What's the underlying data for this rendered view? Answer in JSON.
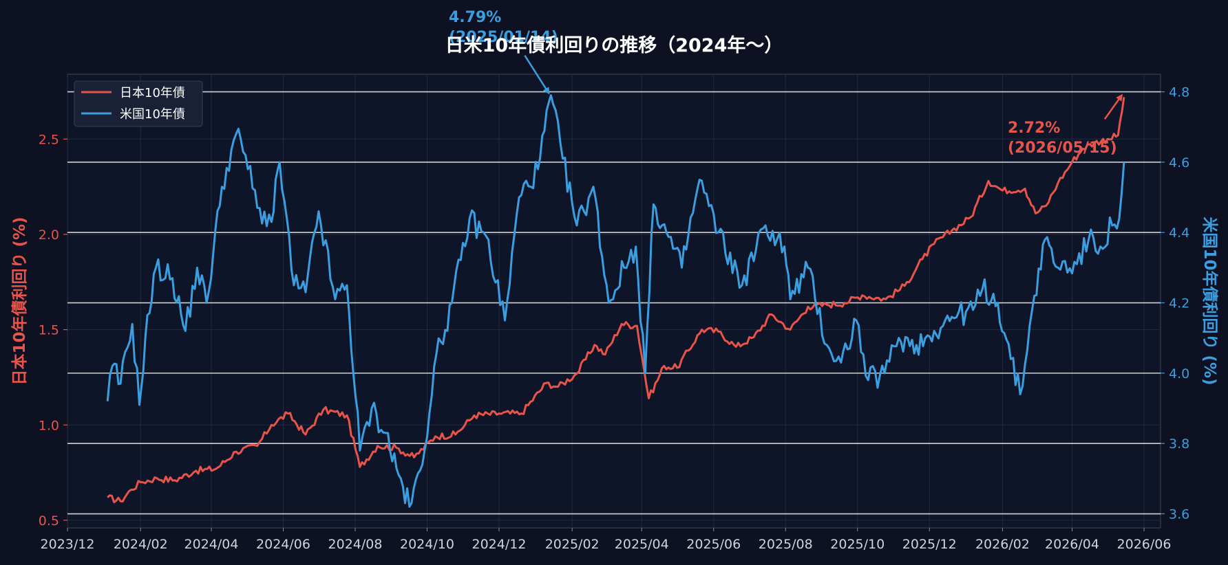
{
  "chart_data": {
    "type": "line",
    "title": "日米10年債利回りの推移（2024年〜）",
    "xlabel": "",
    "ylabel_left": "日本10年債利回り (%)",
    "ylabel_right": "米国10年債利回り (%)",
    "x_ticks": [
      "2023/12",
      "2024/02",
      "2024/04",
      "2024/06",
      "2024/08",
      "2024/10",
      "2024/12",
      "2025/02",
      "2025/04",
      "2025/06",
      "2025/08",
      "2025/10",
      "2025/12",
      "2026/02",
      "2026/04",
      "2026/06"
    ],
    "xlim": [
      "2023-12-01",
      "2026-06-15"
    ],
    "ylim_left": [
      0.46,
      2.84
    ],
    "ylim_right": [
      3.56,
      4.85
    ],
    "y_ticks_left": [
      "0.5",
      "1.0",
      "1.5",
      "2.0",
      "2.5"
    ],
    "y_ticks_right": [
      "3.6",
      "3.8",
      "4.0",
      "4.2",
      "4.4",
      "4.6",
      "4.8"
    ],
    "grid": true,
    "legend_position": "top-left",
    "colors": {
      "japan": "#e8544a",
      "us": "#3b9ee0",
      "background": "#0d1121",
      "hline": "#e6e6e6"
    },
    "hlines_right_axis": [
      3.6,
      3.8,
      4.0,
      4.2,
      4.4,
      4.6,
      4.8
    ],
    "series": [
      {
        "name": "日本10年債",
        "axis": "left",
        "points": [
          [
            "2024-01-04",
            0.62
          ],
          [
            "2024-01-15",
            0.6
          ],
          [
            "2024-01-24",
            0.66
          ],
          [
            "2024-02-01",
            0.7
          ],
          [
            "2024-02-15",
            0.72
          ],
          [
            "2024-03-01",
            0.71
          ],
          [
            "2024-03-19",
            0.76
          ],
          [
            "2024-04-05",
            0.77
          ],
          [
            "2024-04-22",
            0.86
          ],
          [
            "2024-05-10",
            0.89
          ],
          [
            "2024-05-22",
            1.0
          ],
          [
            "2024-06-05",
            1.06
          ],
          [
            "2024-06-20",
            0.95
          ],
          [
            "2024-07-05",
            1.08
          ],
          [
            "2024-07-25",
            1.05
          ],
          [
            "2024-08-05",
            0.78
          ],
          [
            "2024-08-20",
            0.89
          ],
          [
            "2024-09-05",
            0.88
          ],
          [
            "2024-09-20",
            0.83
          ],
          [
            "2024-10-08",
            0.94
          ],
          [
            "2024-10-25",
            0.95
          ],
          [
            "2024-11-10",
            1.05
          ],
          [
            "2024-12-01",
            1.06
          ],
          [
            "2024-12-20",
            1.06
          ],
          [
            "2025-01-10",
            1.22
          ],
          [
            "2025-01-20",
            1.2
          ],
          [
            "2025-02-05",
            1.27
          ],
          [
            "2025-02-20",
            1.42
          ],
          [
            "2025-03-01",
            1.37
          ],
          [
            "2025-03-15",
            1.53
          ],
          [
            "2025-03-28",
            1.52
          ],
          [
            "2025-04-07",
            1.14
          ],
          [
            "2025-04-20",
            1.31
          ],
          [
            "2025-05-01",
            1.3
          ],
          [
            "2025-05-22",
            1.5
          ],
          [
            "2025-06-05",
            1.49
          ],
          [
            "2025-06-20",
            1.41
          ],
          [
            "2025-07-05",
            1.46
          ],
          [
            "2025-07-20",
            1.58
          ],
          [
            "2025-08-05",
            1.5
          ],
          [
            "2025-08-20",
            1.62
          ],
          [
            "2025-09-05",
            1.63
          ],
          [
            "2025-09-20",
            1.64
          ],
          [
            "2025-10-05",
            1.68
          ],
          [
            "2025-10-25",
            1.66
          ],
          [
            "2025-11-10",
            1.73
          ],
          [
            "2025-11-25",
            1.87
          ],
          [
            "2025-12-05",
            1.95
          ],
          [
            "2025-12-20",
            2.02
          ],
          [
            "2026-01-05",
            2.09
          ],
          [
            "2026-01-20",
            2.28
          ],
          [
            "2026-02-01",
            2.23
          ],
          [
            "2026-02-20",
            2.24
          ],
          [
            "2026-03-01",
            2.11
          ],
          [
            "2026-03-10",
            2.15
          ],
          [
            "2026-03-20",
            2.27
          ],
          [
            "2026-04-01",
            2.38
          ],
          [
            "2026-04-10",
            2.45
          ],
          [
            "2026-04-20",
            2.48
          ],
          [
            "2026-05-01",
            2.5
          ],
          [
            "2026-05-10",
            2.52
          ],
          [
            "2026-05-15",
            2.72
          ]
        ]
      },
      {
        "name": "米国10年債",
        "axis": "right",
        "points": [
          [
            "2024-01-04",
            3.92
          ],
          [
            "2024-01-08",
            4.02
          ],
          [
            "2024-01-15",
            3.97
          ],
          [
            "2024-01-25",
            4.14
          ],
          [
            "2024-01-31",
            3.91
          ],
          [
            "2024-02-05",
            4.1
          ],
          [
            "2024-02-14",
            4.3
          ],
          [
            "2024-02-28",
            4.27
          ],
          [
            "2024-03-10",
            4.12
          ],
          [
            "2024-03-20",
            4.3
          ],
          [
            "2024-03-28",
            4.2
          ],
          [
            "2024-04-10",
            4.53
          ],
          [
            "2024-04-22",
            4.68
          ],
          [
            "2024-04-30",
            4.62
          ],
          [
            "2024-05-10",
            4.47
          ],
          [
            "2024-05-22",
            4.43
          ],
          [
            "2024-05-29",
            4.6
          ],
          [
            "2024-06-10",
            4.25
          ],
          [
            "2024-06-20",
            4.23
          ],
          [
            "2024-07-01",
            4.46
          ],
          [
            "2024-07-15",
            4.21
          ],
          [
            "2024-07-25",
            4.25
          ],
          [
            "2024-08-05",
            3.78
          ],
          [
            "2024-08-15",
            3.9
          ],
          [
            "2024-08-27",
            3.83
          ],
          [
            "2024-09-05",
            3.73
          ],
          [
            "2024-09-16",
            3.62
          ],
          [
            "2024-09-27",
            3.74
          ],
          [
            "2024-10-07",
            4.02
          ],
          [
            "2024-10-22",
            4.2
          ],
          [
            "2024-11-06",
            4.44
          ],
          [
            "2024-11-20",
            4.39
          ],
          [
            "2024-12-06",
            4.15
          ],
          [
            "2024-12-18",
            4.5
          ],
          [
            "2025-01-03",
            4.58
          ],
          [
            "2025-01-14",
            4.79
          ],
          [
            "2025-01-24",
            4.61
          ],
          [
            "2025-02-05",
            4.42
          ],
          [
            "2025-02-19",
            4.53
          ],
          [
            "2025-03-04",
            4.2
          ],
          [
            "2025-03-17",
            4.3
          ],
          [
            "2025-03-27",
            4.36
          ],
          [
            "2025-04-04",
            4.0
          ],
          [
            "2025-04-11",
            4.48
          ],
          [
            "2025-04-22",
            4.4
          ],
          [
            "2025-05-05",
            4.3
          ],
          [
            "2025-05-20",
            4.55
          ],
          [
            "2025-06-05",
            4.4
          ],
          [
            "2025-06-25",
            4.25
          ],
          [
            "2025-07-15",
            4.42
          ],
          [
            "2025-07-31",
            4.36
          ],
          [
            "2025-08-05",
            4.21
          ],
          [
            "2025-08-20",
            4.3
          ],
          [
            "2025-09-05",
            4.08
          ],
          [
            "2025-09-17",
            4.03
          ],
          [
            "2025-09-30",
            4.15
          ],
          [
            "2025-10-10",
            3.98
          ],
          [
            "2025-10-24",
            4.0
          ],
          [
            "2025-11-05",
            4.1
          ],
          [
            "2025-11-20",
            4.08
          ],
          [
            "2025-12-05",
            4.12
          ],
          [
            "2025-12-20",
            4.16
          ],
          [
            "2026-01-07",
            4.18
          ],
          [
            "2026-01-15",
            4.24
          ],
          [
            "2026-01-28",
            4.2
          ],
          [
            "2026-02-08",
            4.04
          ],
          [
            "2026-02-16",
            3.94
          ],
          [
            "2026-02-28",
            4.22
          ],
          [
            "2026-03-09",
            4.38
          ],
          [
            "2026-03-20",
            4.3
          ],
          [
            "2026-04-05",
            4.31
          ],
          [
            "2026-04-15",
            4.38
          ],
          [
            "2026-04-25",
            4.36
          ],
          [
            "2026-05-05",
            4.42
          ],
          [
            "2026-05-11",
            4.44
          ],
          [
            "2026-05-15",
            4.6
          ]
        ]
      }
    ],
    "annotations": [
      {
        "series": "米国10年債",
        "axis": "right",
        "x": "2025-01-14",
        "y": 4.79,
        "value_label": "4.79%",
        "date_label": "(2025/01/14)"
      },
      {
        "series": "日本10年債",
        "axis": "left",
        "x": "2026-05-15",
        "y": 2.72,
        "value_label": "2.72%",
        "date_label": "(2026/05/15)"
      }
    ]
  }
}
